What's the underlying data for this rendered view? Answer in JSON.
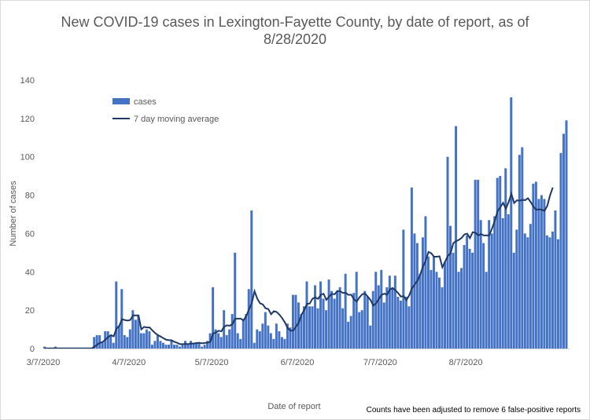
{
  "chart_data": {
    "type": "bar",
    "title_line1": "New COVID-19 cases in Lexington-Fayette County, by date of report, as of",
    "title_line2": "8/28/2020",
    "xlabel": "Date of report",
    "ylabel": "Number of cases",
    "ylim": [
      0,
      140
    ],
    "yticks": [
      0,
      20,
      40,
      60,
      80,
      100,
      120,
      140
    ],
    "x_start": "3/7/2020",
    "x_end": "8/28/2020",
    "xtick_labels": [
      "3/7/2020",
      "4/7/2020",
      "5/7/2020",
      "6/7/2020",
      "7/7/2020",
      "8/7/2020"
    ],
    "xtick_days": [
      0,
      31,
      61,
      92,
      122,
      153
    ],
    "grid": false,
    "legend_position": "top-left",
    "colors": {
      "bars": "#4472c4",
      "line": "#1f3864"
    },
    "series": [
      {
        "name": "cases",
        "type": "bar",
        "values": [
          1,
          0,
          0,
          0,
          1,
          0,
          0,
          0,
          0,
          0,
          0,
          0,
          0,
          0,
          0,
          0,
          0,
          0,
          6,
          7,
          7,
          3,
          9,
          9,
          7,
          3,
          35,
          12,
          31,
          7,
          6,
          10,
          20,
          15,
          17,
          8,
          8,
          10,
          9,
          2,
          4,
          7,
          4,
          3,
          2,
          2,
          4,
          2,
          2,
          1,
          2,
          4,
          2,
          4,
          3,
          3,
          3,
          1,
          2,
          4,
          8,
          32,
          10,
          8,
          6,
          20,
          7,
          10,
          18,
          50,
          8,
          5,
          15,
          18,
          31,
          72,
          3,
          10,
          9,
          13,
          19,
          12,
          8,
          5,
          13,
          9,
          6,
          5,
          13,
          11,
          28,
          28,
          24,
          18,
          22,
          35,
          22,
          22,
          33,
          21,
          35,
          26,
          20,
          36,
          30,
          26,
          30,
          32,
          21,
          39,
          14,
          17,
          29,
          40,
          19,
          20,
          30,
          27,
          12,
          30,
          40,
          33,
          41,
          24,
          32,
          38,
          31,
          38,
          27,
          25,
          62,
          27,
          22,
          84,
          60,
          55,
          39,
          58,
          69,
          48,
          41,
          48,
          40,
          37,
          32,
          45,
          100,
          64,
          50,
          116,
          40,
          42,
          54,
          59,
          52,
          50,
          88,
          88,
          67,
          55,
          40,
          67,
          60,
          69,
          89,
          90,
          68,
          94,
          70,
          131,
          50,
          62,
          101,
          105,
          60,
          58,
          65,
          86,
          87,
          78,
          80,
          78,
          59,
          58,
          61,
          72,
          57,
          102,
          112,
          119
        ]
      },
      {
        "name": "7 day moving average",
        "type": "line",
        "values": [
          0.1,
          0.1,
          0.1,
          0.1,
          0.1,
          0.1,
          0.1,
          0.1,
          0.1,
          0.1,
          0.1,
          0.1,
          0.1,
          0.1,
          0.1,
          0.1,
          0.1,
          0.1,
          0.9,
          2.0,
          3.0,
          3.4,
          4.7,
          6.0,
          7.0,
          6.4,
          10.4,
          11.7,
          15.3,
          14.9,
          14.6,
          14.9,
          17.3,
          17.3,
          17.3,
          10.0,
          11.3,
          11.0,
          11.0,
          9.5,
          8.1,
          7.0,
          6.3,
          5.4,
          4.6,
          4.4,
          4.3,
          3.5,
          3.0,
          2.3,
          2.3,
          2.4,
          2.3,
          2.6,
          2.6,
          2.9,
          3.0,
          2.7,
          2.9,
          3.1,
          3.4,
          7.9,
          8.3,
          9.3,
          9.0,
          11.4,
          12.1,
          11.9,
          12.7,
          15.6,
          15.6,
          15.6,
          14.7,
          16.9,
          20.4,
          23.7,
          29.9,
          26.0,
          23.6,
          23.0,
          21.0,
          20.6,
          17.9,
          19.5,
          19.1,
          17.7,
          15.9,
          13.6,
          10.7,
          9.3,
          9.4,
          11.4,
          13.5,
          17.6,
          20.1,
          23.3,
          23.5,
          26.0,
          26.7,
          25.9,
          28.0,
          28.6,
          25.4,
          27.1,
          28.5,
          28.3,
          30.0,
          29.9,
          29.0,
          29.1,
          28.0,
          28.1,
          25.7,
          24.5,
          26.7,
          28.3,
          28.7,
          27.1,
          25.3,
          22.4,
          23.6,
          25.8,
          28.0,
          28.6,
          28.1,
          30.8,
          31.6,
          30.4,
          28.9,
          27.1,
          27.3,
          25.3,
          27.7,
          31.4,
          33.4,
          35.4,
          38.6,
          42.8,
          45.9,
          50.4,
          49.7,
          47.9,
          47.9,
          48.1,
          42.4,
          45.3,
          48.3,
          49.7,
          55.0,
          56.0,
          56.7,
          57.7,
          59.5,
          59.9,
          57.6,
          60.7,
          60.4,
          59.0,
          59.7,
          59.0,
          59.0,
          59.0,
          62.6,
          66.6,
          71.6,
          73.7,
          76.0,
          72.9,
          76.4,
          80.7,
          75.9,
          77.3,
          77.1,
          77.5,
          77.4,
          78.4,
          76.4,
          74.0,
          72.4,
          72.6,
          72.4,
          71.8,
          74.4,
          79.8,
          84.0
        ]
      }
    ],
    "legend": [
      "cases",
      "7 day moving average"
    ],
    "annotations": [
      "Counts have been adjusted to remove 6 false-positive reports"
    ]
  }
}
